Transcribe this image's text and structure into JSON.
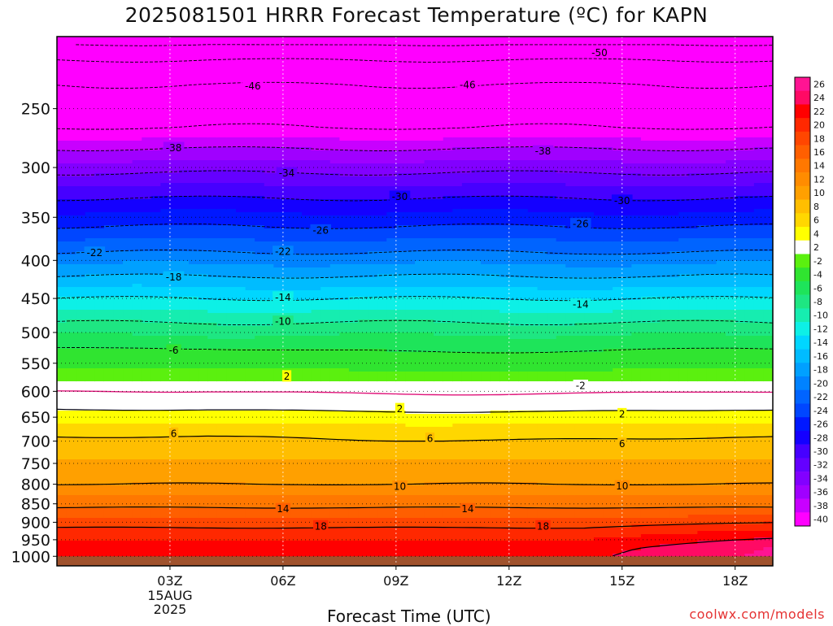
{
  "chart_data": {
    "type": "heatmap",
    "title": "2025081501 HRRR Forecast Temperature (ºC) for KAPN",
    "xlabel": "Forecast Time (UTC)",
    "ylabel": "",
    "x_ticks": [
      {
        "hour": 3,
        "label": "03Z"
      },
      {
        "hour": 6,
        "label": "06Z"
      },
      {
        "hour": 9,
        "label": "09Z"
      },
      {
        "hour": 12,
        "label": "12Z"
      },
      {
        "hour": 15,
        "label": "15Z"
      },
      {
        "hour": 18,
        "label": "18Z"
      }
    ],
    "x_date_label": [
      "15AUG",
      "2025"
    ],
    "xlim_hours": [
      0,
      19
    ],
    "y_axis": "pressure (hPa), log scale, inverted",
    "ylim": [
      1030,
      200
    ],
    "y_ticks": [
      250,
      300,
      350,
      400,
      450,
      500,
      550,
      600,
      650,
      700,
      750,
      800,
      850,
      900,
      950,
      1000
    ],
    "surface_level": 1000,
    "colorbar_labels": [
      26,
      24,
      22,
      20,
      18,
      16,
      14,
      12,
      10,
      8,
      6,
      4,
      2,
      -2,
      -4,
      -6,
      -8,
      -10,
      -12,
      -14,
      -16,
      -18,
      -20,
      -22,
      -24,
      -26,
      -28,
      -30,
      -32,
      -34,
      -36,
      -38,
      -40
    ],
    "colorbar_colors": [
      "#ff1493",
      "#ff0a64",
      "#ff0000",
      "#ff2800",
      "#ff4600",
      "#ff5f00",
      "#ff7800",
      "#ff8c00",
      "#ffa000",
      "#ffbe00",
      "#ffd700",
      "#ffff00",
      "#ffffff",
      "#5bf00f",
      "#30e430",
      "#1ee45a",
      "#1ee682",
      "#16edb0",
      "#0df0e6",
      "#00d6ff",
      "#00bcff",
      "#00a0ff",
      "#0082ff",
      "#0064ff",
      "#0046ff",
      "#0018ff",
      "#1400ff",
      "#4600ff",
      "#6400ff",
      "#8200ff",
      "#a000ff",
      "#c800ff",
      "#ff00ff"
    ],
    "contour_labels": [
      {
        "value": -50,
        "label": "-50",
        "hour": 14.4,
        "pressure": 210
      },
      {
        "value": -46,
        "label": "-46",
        "hour": 5.2,
        "pressure": 233
      },
      {
        "value": -46,
        "label": "-46",
        "hour": 10.9,
        "pressure": 232
      },
      {
        "value": -38,
        "label": "-38",
        "hour": 3.1,
        "pressure": 282
      },
      {
        "value": -38,
        "label": "-38",
        "hour": 12.9,
        "pressure": 285
      },
      {
        "value": -34,
        "label": "-34",
        "hour": 6.1,
        "pressure": 305
      },
      {
        "value": -30,
        "label": "-30",
        "hour": 9.1,
        "pressure": 328
      },
      {
        "value": -30,
        "label": "-30",
        "hour": 15.0,
        "pressure": 332
      },
      {
        "value": -26,
        "label": "-26",
        "hour": 7.0,
        "pressure": 364
      },
      {
        "value": -26,
        "label": "-26",
        "hour": 13.9,
        "pressure": 357
      },
      {
        "value": -22,
        "label": "-22",
        "hour": 1.0,
        "pressure": 390
      },
      {
        "value": -22,
        "label": "-22",
        "hour": 6.0,
        "pressure": 389
      },
      {
        "value": -18,
        "label": "-18",
        "hour": 3.1,
        "pressure": 421
      },
      {
        "value": -14,
        "label": "-14",
        "hour": 6.0,
        "pressure": 448
      },
      {
        "value": -14,
        "label": "-14",
        "hour": 13.9,
        "pressure": 458
      },
      {
        "value": -10,
        "label": "-10",
        "hour": 6.0,
        "pressure": 483
      },
      {
        "value": -6,
        "label": "-6",
        "hour": 3.1,
        "pressure": 528
      },
      {
        "value": -2,
        "label": "-2",
        "hour": 13.9,
        "pressure": 589
      },
      {
        "value": 2,
        "label": "2",
        "hour": 6.1,
        "pressure": 572
      },
      {
        "value": 2,
        "label": "2",
        "hour": 9.1,
        "pressure": 633
      },
      {
        "value": 2,
        "label": "2",
        "hour": 15.0,
        "pressure": 643
      },
      {
        "value": 6,
        "label": "6",
        "hour": 3.1,
        "pressure": 683
      },
      {
        "value": 6,
        "label": "6",
        "hour": 9.9,
        "pressure": 694
      },
      {
        "value": 6,
        "label": "6",
        "hour": 15.0,
        "pressure": 705
      },
      {
        "value": 10,
        "label": "10",
        "hour": 9.1,
        "pressure": 805
      },
      {
        "value": 10,
        "label": "10",
        "hour": 15.0,
        "pressure": 804
      },
      {
        "value": 14,
        "label": "14",
        "hour": 6.0,
        "pressure": 863
      },
      {
        "value": 14,
        "label": "14",
        "hour": 10.9,
        "pressure": 863
      },
      {
        "value": 18,
        "label": "18",
        "hour": 7.0,
        "pressure": 910
      },
      {
        "value": 18,
        "label": "18",
        "hour": 12.9,
        "pressure": 910
      }
    ]
  },
  "credit": "coolwx.com/models"
}
